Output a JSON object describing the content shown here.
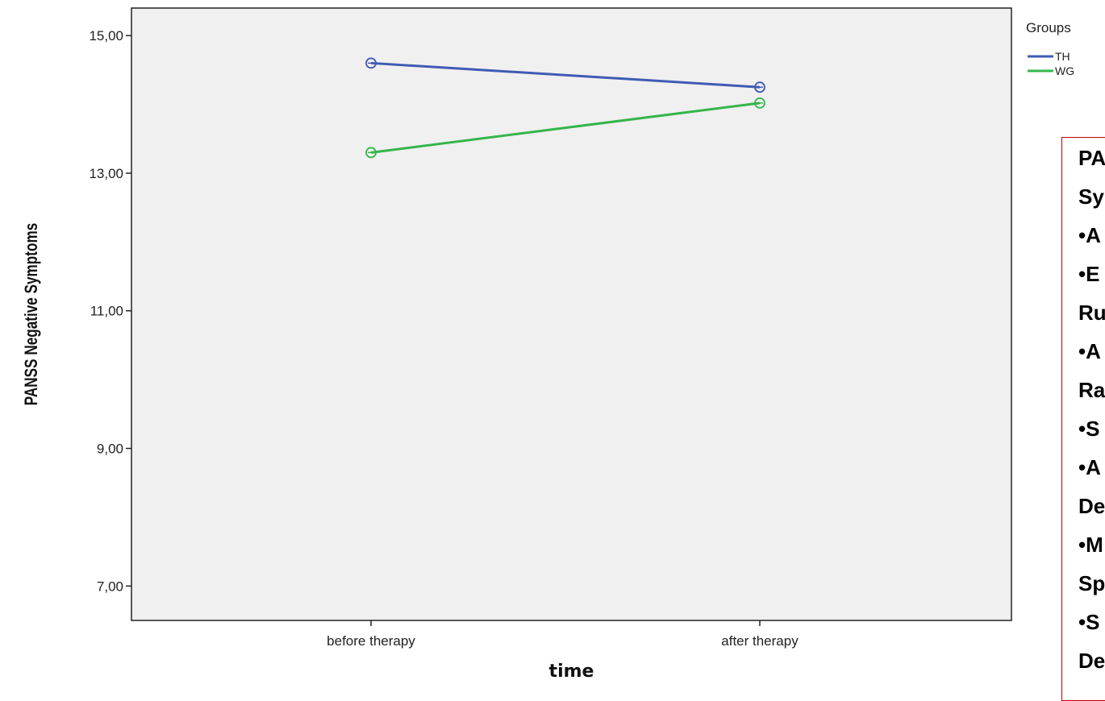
{
  "chart_data": {
    "type": "line",
    "xlabel": "time",
    "ylabel": "PANSS Negative Symptoms",
    "categories": [
      "before therapy",
      "after therapy"
    ],
    "ylim": [
      6.5,
      15.4
    ],
    "yticks": [
      "7,00",
      "9,00",
      "11,00",
      "13,00",
      "15,00"
    ],
    "ytick_values": [
      7,
      9,
      11,
      13,
      15
    ],
    "legend": {
      "title": "Groups",
      "position": "top-right, outside plot"
    },
    "series": [
      {
        "name": "TH",
        "color": "#3f5bb4",
        "values": [
          14.6,
          14.25
        ]
      },
      {
        "name": "WG",
        "color": "#35b54a",
        "values": [
          13.3,
          14.02
        ]
      }
    ],
    "background": "#f0f0f0",
    "grid": false
  },
  "notes": {
    "lines": [
      "PA",
      "Sy",
      "•A",
      "•E",
      "Ru",
      "•A",
      "Ra",
      "•S",
      "•A",
      "De",
      "•M",
      "Sp",
      "•S",
      "De"
    ]
  }
}
